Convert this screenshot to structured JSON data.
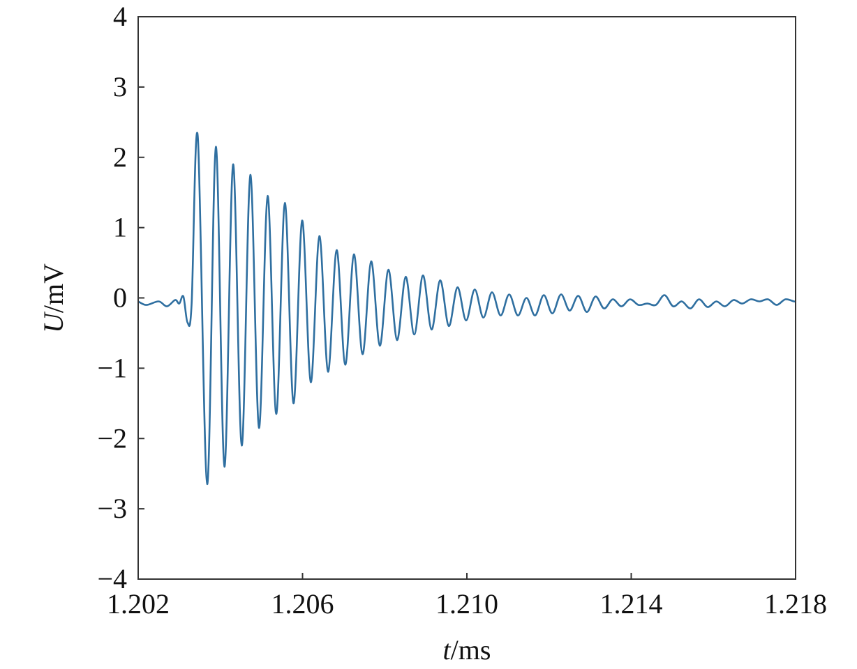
{
  "chart_data": {
    "type": "line",
    "title": "",
    "xlabel_var": "t",
    "xlabel_unit": "/ms",
    "ylabel_var": "U",
    "ylabel_unit": "/mV",
    "xlim": [
      1.202,
      1.218
    ],
    "ylim": [
      -4,
      4
    ],
    "x_ticks": [
      "1.202",
      "1.206",
      "1.210",
      "1.214",
      "1.218"
    ],
    "y_ticks": [
      "4",
      "3",
      "2",
      "1",
      "0",
      "−1",
      "−2",
      "−3",
      "−4"
    ],
    "grid": false,
    "line_color": "#2f6fa0",
    "series": [
      {
        "x": [
          1.202,
          1.2022,
          1.2025,
          1.2027,
          1.2029,
          1.203,
          1.2031,
          1.2032,
          1.2033,
          1.20345,
          1.20368,
          1.20389,
          1.2041,
          1.20431,
          1.20452,
          1.20473,
          1.20494,
          1.20515,
          1.20536,
          1.20557,
          1.20578,
          1.20599,
          1.2062,
          1.20641,
          1.20662,
          1.20683,
          1.20704,
          1.20725,
          1.20746,
          1.20767,
          1.20788,
          1.20809,
          1.2083,
          1.20851,
          1.20872,
          1.20893,
          1.20914,
          1.20935,
          1.20956,
          1.20977,
          1.20998,
          1.21019,
          1.2104,
          1.21061,
          1.21082,
          1.21103,
          1.21124,
          1.21145,
          1.21166,
          1.21187,
          1.21208,
          1.21229,
          1.2125,
          1.21271,
          1.21292,
          1.21313,
          1.21334,
          1.21355,
          1.21376,
          1.21397,
          1.21418,
          1.21439,
          1.2146,
          1.21481,
          1.21502,
          1.21523,
          1.21544,
          1.21565,
          1.21586,
          1.21607,
          1.21628,
          1.21649,
          1.2167,
          1.21691,
          1.21712,
          1.21733,
          1.21754,
          1.21775,
          1.21796,
          1.218
        ],
        "y": [
          -0.05,
          -0.1,
          -0.05,
          -0.12,
          -0.03,
          -0.08,
          0.02,
          -0.35,
          -0.1,
          2.3,
          -2.65,
          2.15,
          -2.4,
          1.9,
          -2.1,
          1.75,
          -1.85,
          1.45,
          -1.65,
          1.35,
          -1.5,
          1.1,
          -1.2,
          0.88,
          -1.05,
          0.68,
          -0.95,
          0.62,
          -0.8,
          0.52,
          -0.68,
          0.4,
          -0.6,
          0.3,
          -0.52,
          0.32,
          -0.45,
          0.25,
          -0.4,
          0.15,
          -0.32,
          0.12,
          -0.28,
          0.08,
          -0.25,
          0.05,
          -0.25,
          0.0,
          -0.25,
          0.04,
          -0.22,
          0.05,
          -0.18,
          0.03,
          -0.2,
          0.02,
          -0.15,
          -0.02,
          -0.12,
          -0.02,
          -0.1,
          -0.08,
          -0.1,
          0.04,
          -0.12,
          -0.05,
          -0.15,
          -0.02,
          -0.13,
          -0.05,
          -0.12,
          -0.03,
          -0.08,
          -0.02,
          -0.05,
          -0.02,
          -0.1,
          -0.02,
          -0.05,
          -0.05
        ]
      }
    ]
  }
}
